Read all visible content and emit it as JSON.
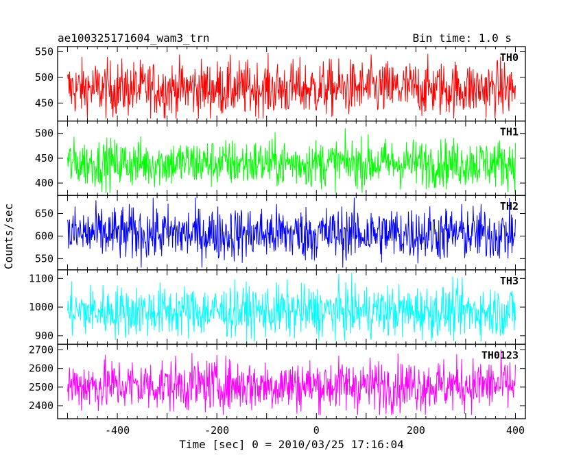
{
  "header": {
    "title": "ae100325171604_wam3_trn",
    "bin_time": "Bin time: 1.0 s"
  },
  "chart_data": {
    "type": "line",
    "title": "ae100325171604_wam3_trn",
    "subtitle": "Bin time: 1.0 s",
    "xlabel": "Time [sec] 0 = 2010/03/25 17:16:04",
    "ylabel": "Counts/sec",
    "xlim": [
      -520,
      420
    ],
    "xticks": [
      -400,
      -200,
      0,
      200,
      400
    ],
    "x_range": [
      -500,
      400
    ],
    "bin_time_s": 1.0,
    "grid": false,
    "panels": [
      {
        "name": "TH0",
        "color": "#ff0000",
        "ylim": [
          415,
          560
        ],
        "yticks": [
          450,
          500,
          550
        ],
        "mean": 478,
        "spread": 27,
        "min_value": 420,
        "max_value": 558
      },
      {
        "name": "TH1",
        "color": "#00ff00",
        "ylim": [
          375,
          525
        ],
        "yticks": [
          400,
          450,
          500
        ],
        "mean": 440,
        "spread": 24,
        "min_value": 380,
        "max_value": 520
      },
      {
        "name": "TH2",
        "color": "#0000ff",
        "ylim": [
          525,
          690
        ],
        "yticks": [
          550,
          600,
          650
        ],
        "mean": 605,
        "spread": 30,
        "min_value": 530,
        "max_value": 685
      },
      {
        "name": "TH3",
        "color": "#00ffff",
        "ylim": [
          870,
          1130
        ],
        "yticks": [
          900,
          1000,
          1100
        ],
        "mean": 985,
        "spread": 45,
        "min_value": 880,
        "max_value": 1120
      },
      {
        "name": "TH0123",
        "color": "#ff00ff",
        "ylim": [
          2330,
          2730
        ],
        "yticks": [
          2400,
          2500,
          2600,
          2700
        ],
        "mean": 2510,
        "spread": 70,
        "min_value": 2350,
        "max_value": 2720
      }
    ]
  }
}
